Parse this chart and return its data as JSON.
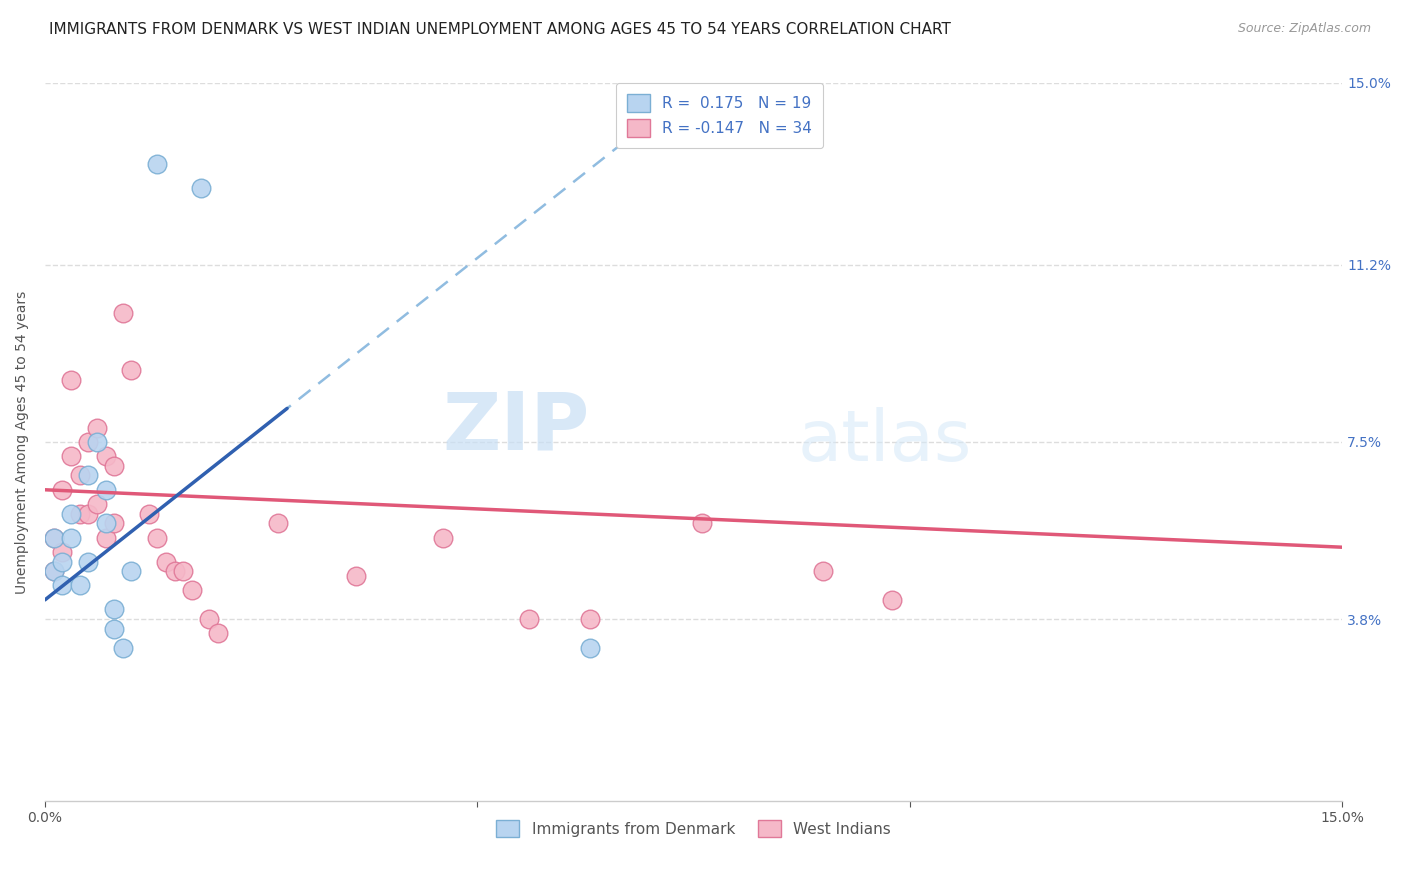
{
  "title": "IMMIGRANTS FROM DENMARK VS WEST INDIAN UNEMPLOYMENT AMONG AGES 45 TO 54 YEARS CORRELATION CHART",
  "source": "Source: ZipAtlas.com",
  "ylabel": "Unemployment Among Ages 45 to 54 years",
  "xlim": [
    0,
    0.15
  ],
  "ylim": [
    0,
    0.15
  ],
  "ytick_labels_right": [
    "15.0%",
    "11.2%",
    "7.5%",
    "3.8%"
  ],
  "ytick_values_right": [
    0.15,
    0.112,
    0.075,
    0.038
  ],
  "watermark_zip": "ZIP",
  "watermark_atlas": "atlas",
  "denmark_color": "#b8d4f0",
  "denmark_edge_color": "#7bafd4",
  "west_indian_color": "#f5b8c8",
  "west_indian_edge_color": "#e07898",
  "denmark_line_color": "#3060b0",
  "west_indian_line_color": "#e05878",
  "denmark_dashed_color": "#90bce0",
  "r_denmark": 0.175,
  "n_denmark": 19,
  "r_west_indian": -0.147,
  "n_west_indian": 34,
  "denmark_x": [
    0.001,
    0.001,
    0.002,
    0.002,
    0.003,
    0.003,
    0.004,
    0.005,
    0.005,
    0.006,
    0.007,
    0.007,
    0.008,
    0.008,
    0.009,
    0.01,
    0.013,
    0.018,
    0.063
  ],
  "denmark_y": [
    0.055,
    0.048,
    0.05,
    0.045,
    0.06,
    0.055,
    0.045,
    0.068,
    0.05,
    0.075,
    0.065,
    0.058,
    0.04,
    0.036,
    0.032,
    0.048,
    0.133,
    0.128,
    0.032
  ],
  "west_indian_x": [
    0.001,
    0.001,
    0.002,
    0.002,
    0.003,
    0.003,
    0.004,
    0.004,
    0.005,
    0.005,
    0.006,
    0.006,
    0.007,
    0.007,
    0.008,
    0.008,
    0.009,
    0.01,
    0.012,
    0.013,
    0.014,
    0.015,
    0.016,
    0.017,
    0.019,
    0.02,
    0.027,
    0.036,
    0.046,
    0.056,
    0.063,
    0.076,
    0.09,
    0.098
  ],
  "west_indian_y": [
    0.055,
    0.048,
    0.065,
    0.052,
    0.088,
    0.072,
    0.068,
    0.06,
    0.075,
    0.06,
    0.078,
    0.062,
    0.072,
    0.055,
    0.07,
    0.058,
    0.102,
    0.09,
    0.06,
    0.055,
    0.05,
    0.048,
    0.048,
    0.044,
    0.038,
    0.035,
    0.058,
    0.047,
    0.055,
    0.038,
    0.038,
    0.058,
    0.048,
    0.042
  ],
  "dk_line_x0": 0.0,
  "dk_line_y0": 0.042,
  "dk_line_x1": 0.028,
  "dk_line_y1": 0.082,
  "wi_line_x0": 0.0,
  "wi_line_y0": 0.065,
  "wi_line_x1": 0.15,
  "wi_line_y1": 0.053,
  "background_color": "#ffffff",
  "grid_color": "#dddddd",
  "title_fontsize": 11,
  "axis_label_fontsize": 10,
  "tick_fontsize": 10,
  "legend_fontsize": 11
}
